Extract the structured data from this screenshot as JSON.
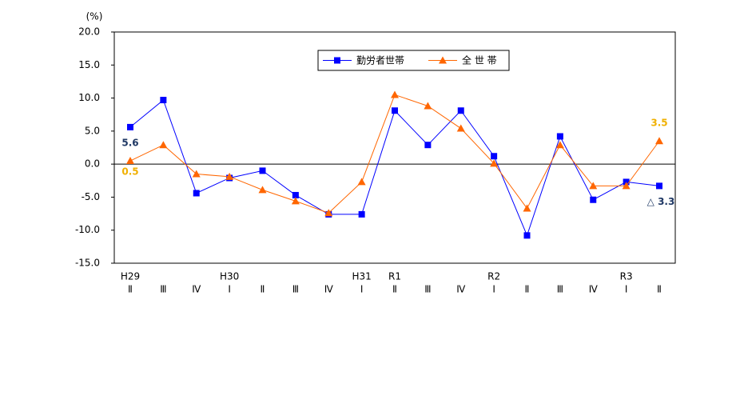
{
  "chart_data": {
    "type": "line",
    "y_unit": "(%)",
    "categories": [
      [
        "H29",
        "Ⅱ"
      ],
      [
        "Ⅲ"
      ],
      [
        "Ⅳ"
      ],
      [
        "H30",
        "Ⅰ"
      ],
      [
        "Ⅱ"
      ],
      [
        "Ⅲ"
      ],
      [
        "Ⅳ"
      ],
      [
        "H31",
        "Ⅰ"
      ],
      [
        "R1",
        "Ⅱ"
      ],
      [
        "Ⅲ"
      ],
      [
        "Ⅳ"
      ],
      [
        "R2",
        "Ⅰ"
      ],
      [
        "Ⅱ"
      ],
      [
        "Ⅲ"
      ],
      [
        "Ⅳ"
      ],
      [
        "R3",
        "Ⅰ"
      ],
      [
        "Ⅱ"
      ]
    ],
    "series": [
      {
        "name": "勤労者世帯",
        "color": "#0000ff",
        "marker": "square",
        "values": [
          5.6,
          9.7,
          -4.4,
          -2.1,
          -1.0,
          -4.7,
          -7.6,
          -7.6,
          8.1,
          2.9,
          8.1,
          1.2,
          -10.8,
          4.2,
          -5.4,
          -2.7,
          -3.3
        ],
        "value_labels": [
          "5.6",
          null,
          null,
          null,
          null,
          null,
          null,
          null,
          null,
          null,
          null,
          null,
          null,
          null,
          null,
          null,
          "△ 3.3"
        ],
        "label_color": "#1f3864"
      },
      {
        "name": "全 世 帯",
        "color": "#ff6600",
        "marker": "triangle",
        "values": [
          0.5,
          2.9,
          -1.5,
          -1.9,
          -3.9,
          -5.6,
          -7.4,
          -2.7,
          10.5,
          8.8,
          5.4,
          0.1,
          -6.7,
          2.9,
          -3.3,
          -3.3,
          3.5
        ],
        "value_labels": [
          "0.5",
          null,
          null,
          null,
          null,
          null,
          null,
          null,
          null,
          null,
          null,
          null,
          null,
          null,
          null,
          null,
          "3.5"
        ],
        "label_color": "#f0b000"
      }
    ],
    "ylim": [
      -15,
      20
    ],
    "yticks": [
      {
        "value": -15,
        "label": "-15.0"
      },
      {
        "value": -10,
        "label": "-10.0"
      },
      {
        "value": -5,
        "label": "-5.0"
      },
      {
        "value": 0,
        "label": "0.0"
      },
      {
        "value": 5,
        "label": "5.0"
      },
      {
        "value": 10,
        "label": "10.0"
      },
      {
        "value": 15,
        "label": "15.0"
      },
      {
        "value": 20,
        "label": "20.0"
      }
    ],
    "zero_line": true,
    "grid": false,
    "legend": "top"
  }
}
